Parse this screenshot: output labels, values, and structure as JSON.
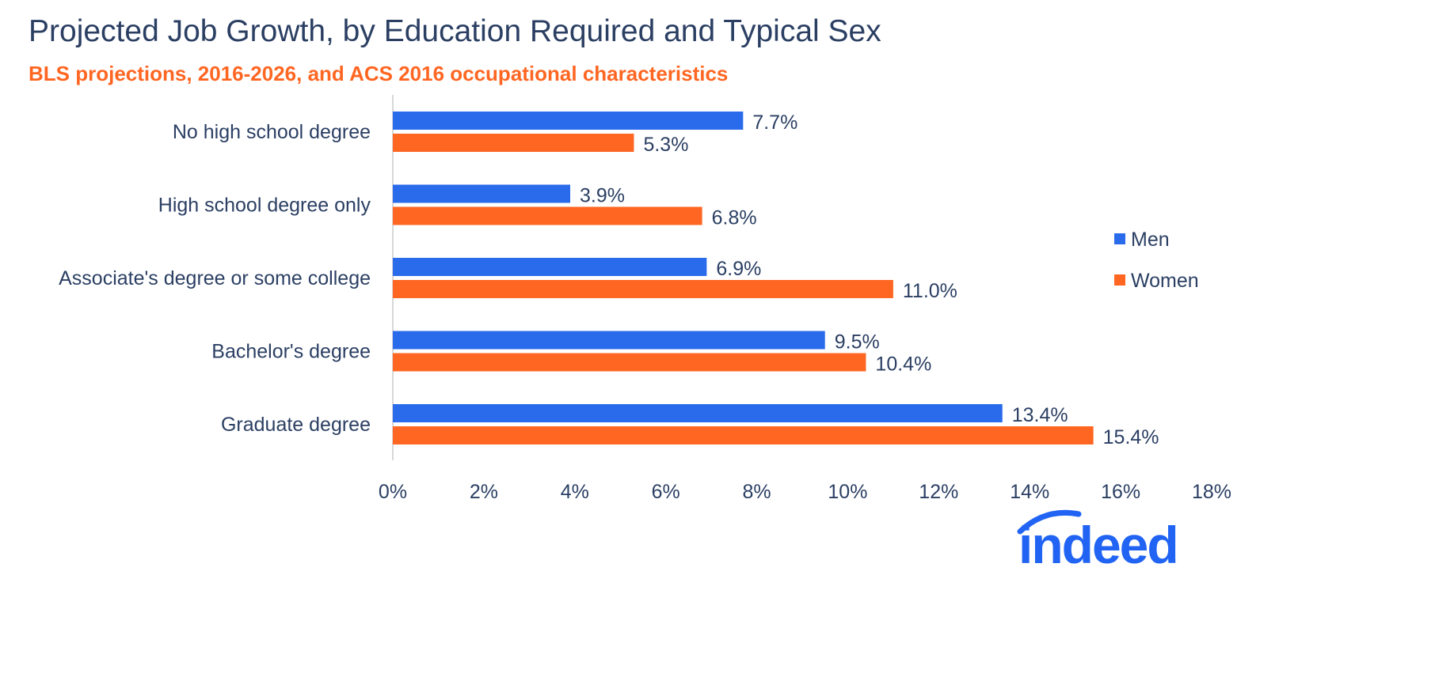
{
  "chart_data": {
    "type": "bar",
    "orientation": "horizontal",
    "title": "Projected Job Growth, by Education Required and Typical Sex",
    "subtitle": "BLS projections, 2016-2026, and ACS 2016 occupational characteristics",
    "categories": [
      "No high school degree",
      "High school degree only",
      "Associate's degree or some college",
      "Bachelor's degree",
      "Graduate degree"
    ],
    "series": [
      {
        "name": "Men",
        "color": "#2a6bec",
        "values": [
          7.7,
          3.9,
          6.9,
          9.5,
          13.4
        ],
        "labels": [
          "7.7%",
          "3.9%",
          "6.9%",
          "9.5%",
          "13.4%"
        ]
      },
      {
        "name": "Women",
        "color": "#ff6622",
        "values": [
          5.3,
          6.8,
          11.0,
          10.4,
          15.4
        ],
        "labels": [
          "5.3%",
          "6.8%",
          "11.0%",
          "10.4%",
          "15.4%"
        ]
      }
    ],
    "xlim": [
      0,
      18
    ],
    "xticks": [
      "0%",
      "2%",
      "4%",
      "6%",
      "8%",
      "10%",
      "12%",
      "14%",
      "16%",
      "18%"
    ],
    "grid": false,
    "legend": "right"
  },
  "logo": {
    "text": "indeed",
    "color": "#2164f3"
  }
}
